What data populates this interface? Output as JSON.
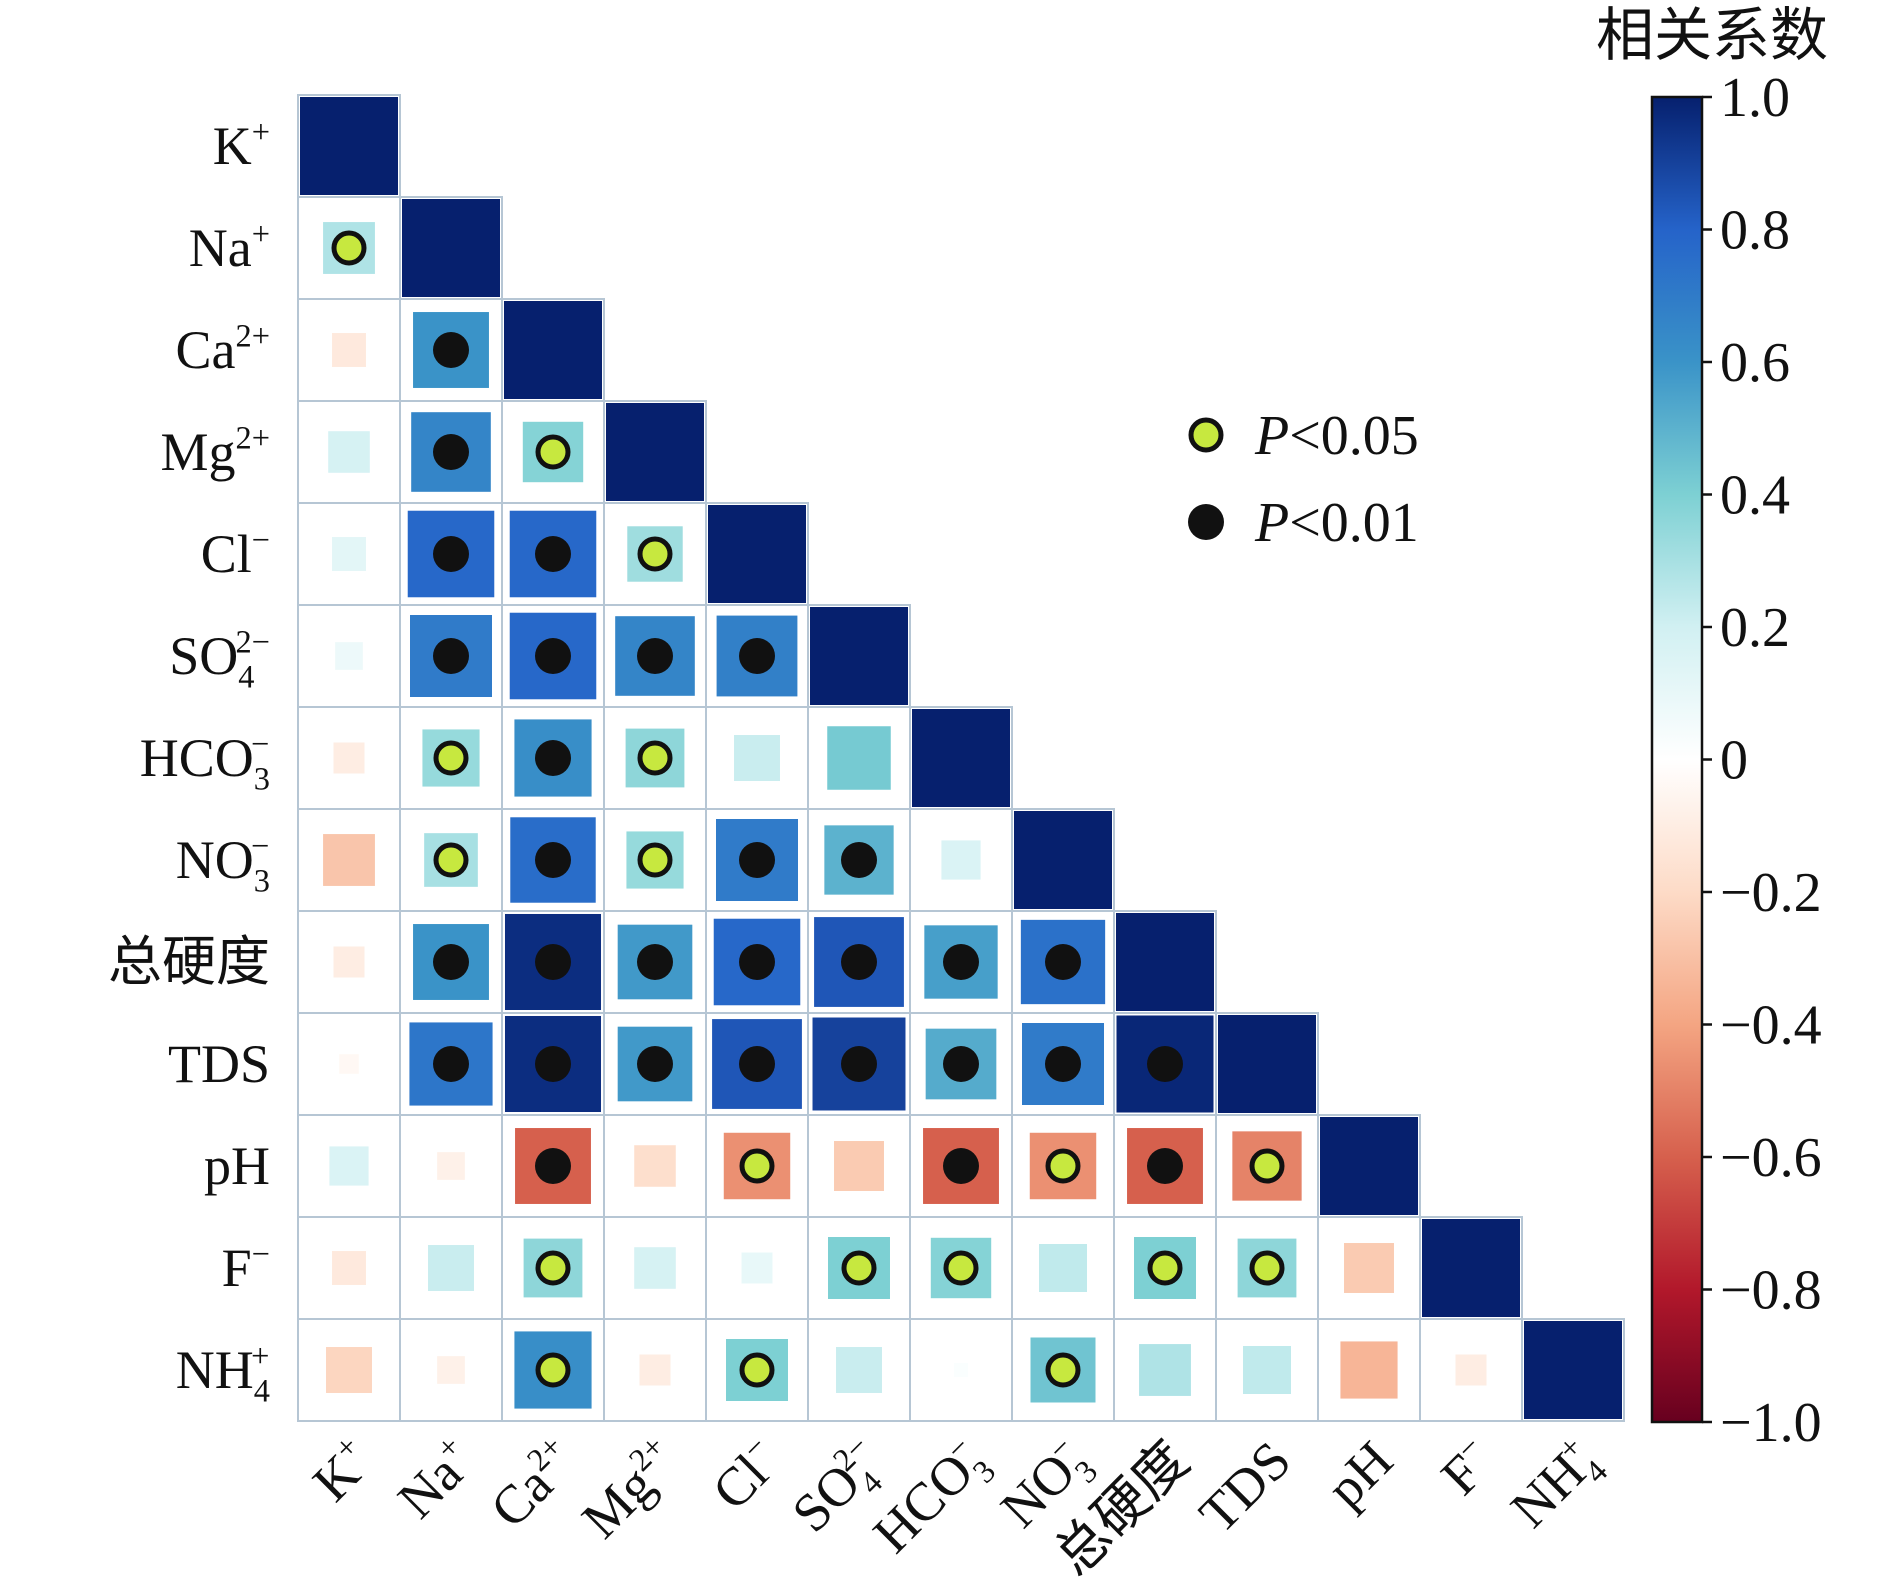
{
  "chart_data": {
    "type": "heatmap",
    "subtype": "lower-triangle correlation matrix",
    "variables": [
      {
        "base": "K",
        "sub": "",
        "sup": "+"
      },
      {
        "base": "Na",
        "sub": "",
        "sup": "+"
      },
      {
        "base": "Ca",
        "sub": "",
        "sup": "2+"
      },
      {
        "base": "Mg",
        "sub": "",
        "sup": "2+"
      },
      {
        "base": "Cl",
        "sub": "",
        "sup": "−"
      },
      {
        "base": "SO",
        "sub": "4",
        "sup": "2−"
      },
      {
        "base": "HCO",
        "sub": "3",
        "sup": "−"
      },
      {
        "base": "NO",
        "sub": "3",
        "sup": "−"
      },
      {
        "base": "总硬度",
        "sub": "",
        "sup": ""
      },
      {
        "base": "TDS",
        "sub": "",
        "sup": ""
      },
      {
        "base": "pH",
        "sub": "",
        "sup": ""
      },
      {
        "base": "F",
        "sub": "",
        "sup": "−"
      },
      {
        "base": "NH",
        "sub": "4",
        "sup": "+"
      }
    ],
    "matrix": [
      [
        1.0
      ],
      [
        0.28,
        1.0
      ],
      [
        -0.12,
        0.6,
        1.0
      ],
      [
        0.18,
        0.66,
        0.38,
        1.0
      ],
      [
        0.12,
        0.78,
        0.78,
        0.32,
        1.0
      ],
      [
        0.08,
        0.7,
        0.78,
        0.66,
        0.68,
        1.0
      ],
      [
        -0.1,
        0.34,
        0.62,
        0.36,
        0.22,
        0.42,
        1.0
      ],
      [
        -0.28,
        0.3,
        0.76,
        0.34,
        0.7,
        0.5,
        0.16,
        1.0
      ],
      [
        -0.1,
        0.6,
        0.96,
        0.58,
        0.78,
        0.84,
        0.56,
        0.74,
        1.0
      ],
      [
        -0.04,
        0.72,
        0.96,
        0.58,
        0.84,
        0.9,
        0.52,
        0.7,
        0.98,
        1.0
      ],
      [
        0.16,
        -0.08,
        -0.6,
        -0.18,
        -0.46,
        -0.26,
        -0.6,
        -0.46,
        -0.6,
        -0.5,
        1.0
      ],
      [
        -0.12,
        0.22,
        0.36,
        0.18,
        0.1,
        0.4,
        0.38,
        0.24,
        0.4,
        0.36,
        -0.26,
        1.0
      ],
      [
        -0.22,
        -0.08,
        0.62,
        -0.1,
        0.4,
        0.22,
        0.02,
        0.44,
        0.28,
        0.24,
        -0.34,
        -0.1,
        1.0
      ]
    ],
    "significance": [
      [
        ""
      ],
      [
        "p05",
        ""
      ],
      [
        "",
        "p01",
        ""
      ],
      [
        "",
        "p01",
        "p05",
        ""
      ],
      [
        "",
        "p01",
        "p01",
        "p05",
        ""
      ],
      [
        "",
        "p01",
        "p01",
        "p01",
        "p01",
        ""
      ],
      [
        "",
        "p05",
        "p01",
        "p05",
        "",
        "",
        ""
      ],
      [
        "",
        "p05",
        "p01",
        "p05",
        "p01",
        "p01",
        "",
        ""
      ],
      [
        "",
        "p01",
        "p01",
        "p01",
        "p01",
        "p01",
        "p01",
        "p01",
        ""
      ],
      [
        "",
        "p01",
        "p01",
        "p01",
        "p01",
        "p01",
        "p01",
        "p01",
        "p01",
        ""
      ],
      [
        "",
        "",
        "p01",
        "",
        "p05",
        "",
        "p01",
        "p05",
        "p01",
        "p05",
        ""
      ],
      [
        "",
        "",
        "p05",
        "",
        "",
        "p05",
        "p05",
        "",
        "p05",
        "p05",
        "",
        ""
      ],
      [
        "",
        "",
        "p05",
        "",
        "p05",
        "",
        "",
        "p05",
        "",
        "",
        "",
        "",
        ""
      ]
    ],
    "legend": {
      "placement": "upper-right",
      "entries": [
        {
          "key": "p05",
          "prefix": "P",
          "text": "<0.05",
          "fill": "#c7e83f"
        },
        {
          "key": "p01",
          "prefix": "P",
          "text": "<0.01",
          "fill": "#111111"
        }
      ]
    },
    "colorbar": {
      "title": "相关系数",
      "range": [
        -1.0,
        1.0
      ],
      "ticks": [
        1.0,
        0.8,
        0.6,
        0.4,
        0.2,
        0,
        -0.2,
        -0.4,
        -0.6,
        -0.8,
        -1.0
      ],
      "tick_labels": [
        "1.0",
        "0.8",
        "0.6",
        "0.4",
        "0.2",
        "0",
        "−0.2",
        "−0.4",
        "−0.6",
        "−0.8",
        "−1.0"
      ],
      "colormap": "RdBu",
      "colors": [
        "#67001f",
        "#b2182b",
        "#d6604d",
        "#f4a582",
        "#fddbc7",
        "#ffffff",
        "#d1f0f2",
        "#7dd0d3",
        "#3a93c8",
        "#2563c9",
        "#06206e"
      ]
    }
  }
}
